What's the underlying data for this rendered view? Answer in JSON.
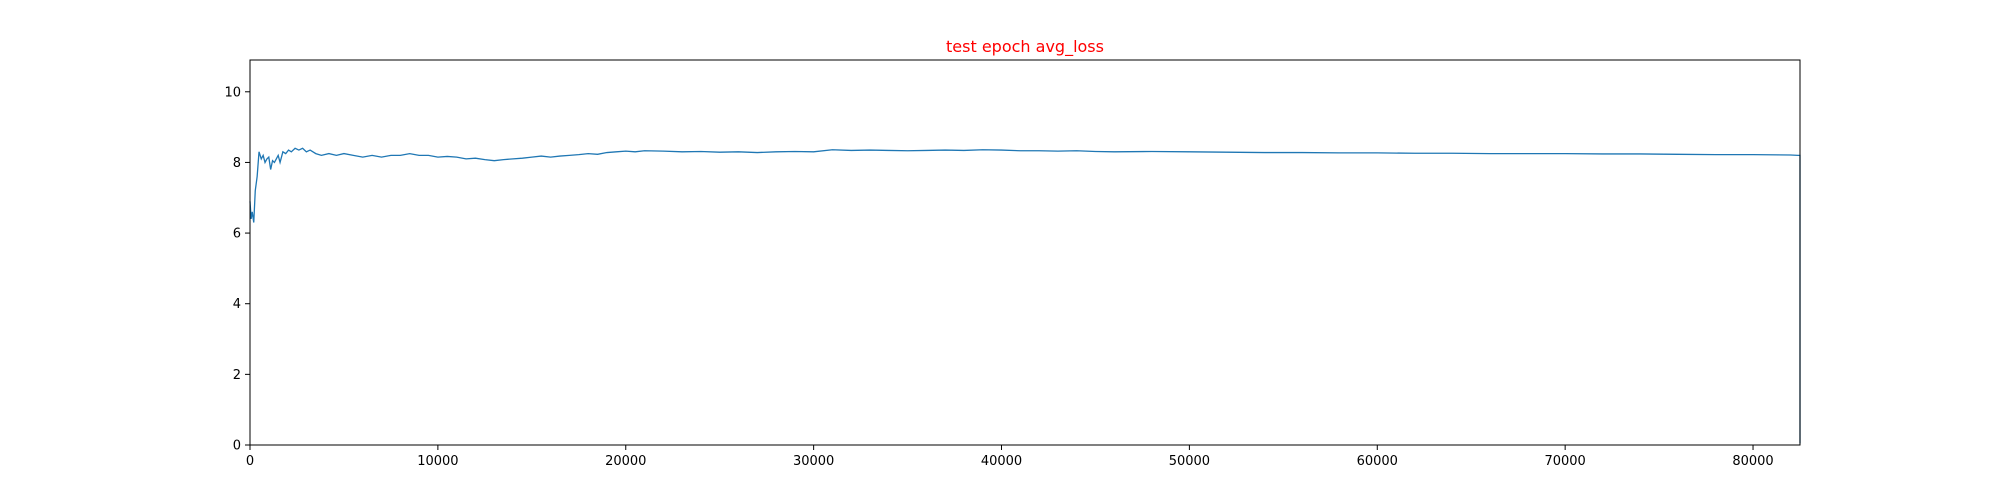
{
  "chart_data": {
    "type": "line",
    "title": "test epoch avg_loss",
    "title_color": "#ff0000",
    "xlabel": "",
    "ylabel": "",
    "xlim": [
      0,
      82500
    ],
    "ylim": [
      0,
      10.9
    ],
    "x_ticks": [
      0,
      10000,
      20000,
      30000,
      40000,
      50000,
      60000,
      70000,
      80000
    ],
    "y_ticks": [
      0,
      2,
      4,
      6,
      8,
      10
    ],
    "grid": false,
    "legend": "none",
    "series_color": "#1f77b4",
    "series": [
      {
        "x": [
          0,
          60,
          120,
          200,
          280,
          380,
          480,
          600,
          700,
          800,
          900,
          1000,
          1100,
          1200,
          1300,
          1400,
          1500,
          1600,
          1750,
          1900,
          2050,
          2200,
          2400,
          2600,
          2800,
          3000,
          3200,
          3500,
          3800,
          4200,
          4600,
          5000,
          5500,
          6000,
          6500,
          7000,
          7500,
          8000,
          8500,
          9000,
          9500,
          10000,
          10500,
          11000,
          11500,
          12000,
          12500,
          13000,
          13500,
          14000,
          14500,
          15000,
          15500,
          16000,
          16500,
          17000,
          17500,
          18000,
          18500,
          19000,
          19500,
          20000,
          20500,
          21000,
          22000,
          23000,
          24000,
          25000,
          26000,
          27000,
          28000,
          29000,
          30000,
          31000,
          32000,
          33000,
          34000,
          35000,
          36000,
          37000,
          38000,
          39000,
          40000,
          41000,
          42000,
          43000,
          44000,
          45000,
          46000,
          48000,
          50000,
          52000,
          54000,
          56000,
          58000,
          60000,
          62000,
          64000,
          66000,
          68000,
          70000,
          72000,
          74000,
          76000,
          78000,
          80000,
          82000,
          82400,
          82450,
          82500,
          82500
        ],
        "y": [
          6.9,
          6.4,
          6.6,
          6.3,
          7.2,
          7.6,
          8.3,
          8.1,
          8.2,
          8.0,
          8.1,
          8.15,
          7.8,
          8.05,
          8.0,
          8.1,
          8.2,
          8.0,
          8.3,
          8.25,
          8.35,
          8.3,
          8.4,
          8.35,
          8.4,
          8.3,
          8.35,
          8.25,
          8.2,
          8.25,
          8.2,
          8.25,
          8.2,
          8.15,
          8.2,
          8.15,
          8.2,
          8.2,
          8.25,
          8.2,
          8.2,
          8.15,
          8.17,
          8.15,
          8.1,
          8.12,
          8.08,
          8.05,
          8.08,
          8.1,
          8.12,
          8.15,
          8.18,
          8.15,
          8.18,
          8.2,
          8.22,
          8.25,
          8.23,
          8.28,
          8.3,
          8.32,
          8.3,
          8.33,
          8.32,
          8.3,
          8.31,
          8.29,
          8.3,
          8.28,
          8.3,
          8.31,
          8.3,
          8.36,
          8.34,
          8.35,
          8.34,
          8.33,
          8.34,
          8.35,
          8.34,
          8.36,
          8.35,
          8.33,
          8.33,
          8.32,
          8.33,
          8.31,
          8.3,
          8.31,
          8.3,
          8.29,
          8.28,
          8.28,
          8.27,
          8.27,
          8.26,
          8.26,
          8.25,
          8.25,
          8.25,
          8.24,
          8.24,
          8.23,
          8.22,
          8.22,
          8.21,
          8.2,
          8.2,
          8.2,
          0.05
        ]
      }
    ]
  }
}
